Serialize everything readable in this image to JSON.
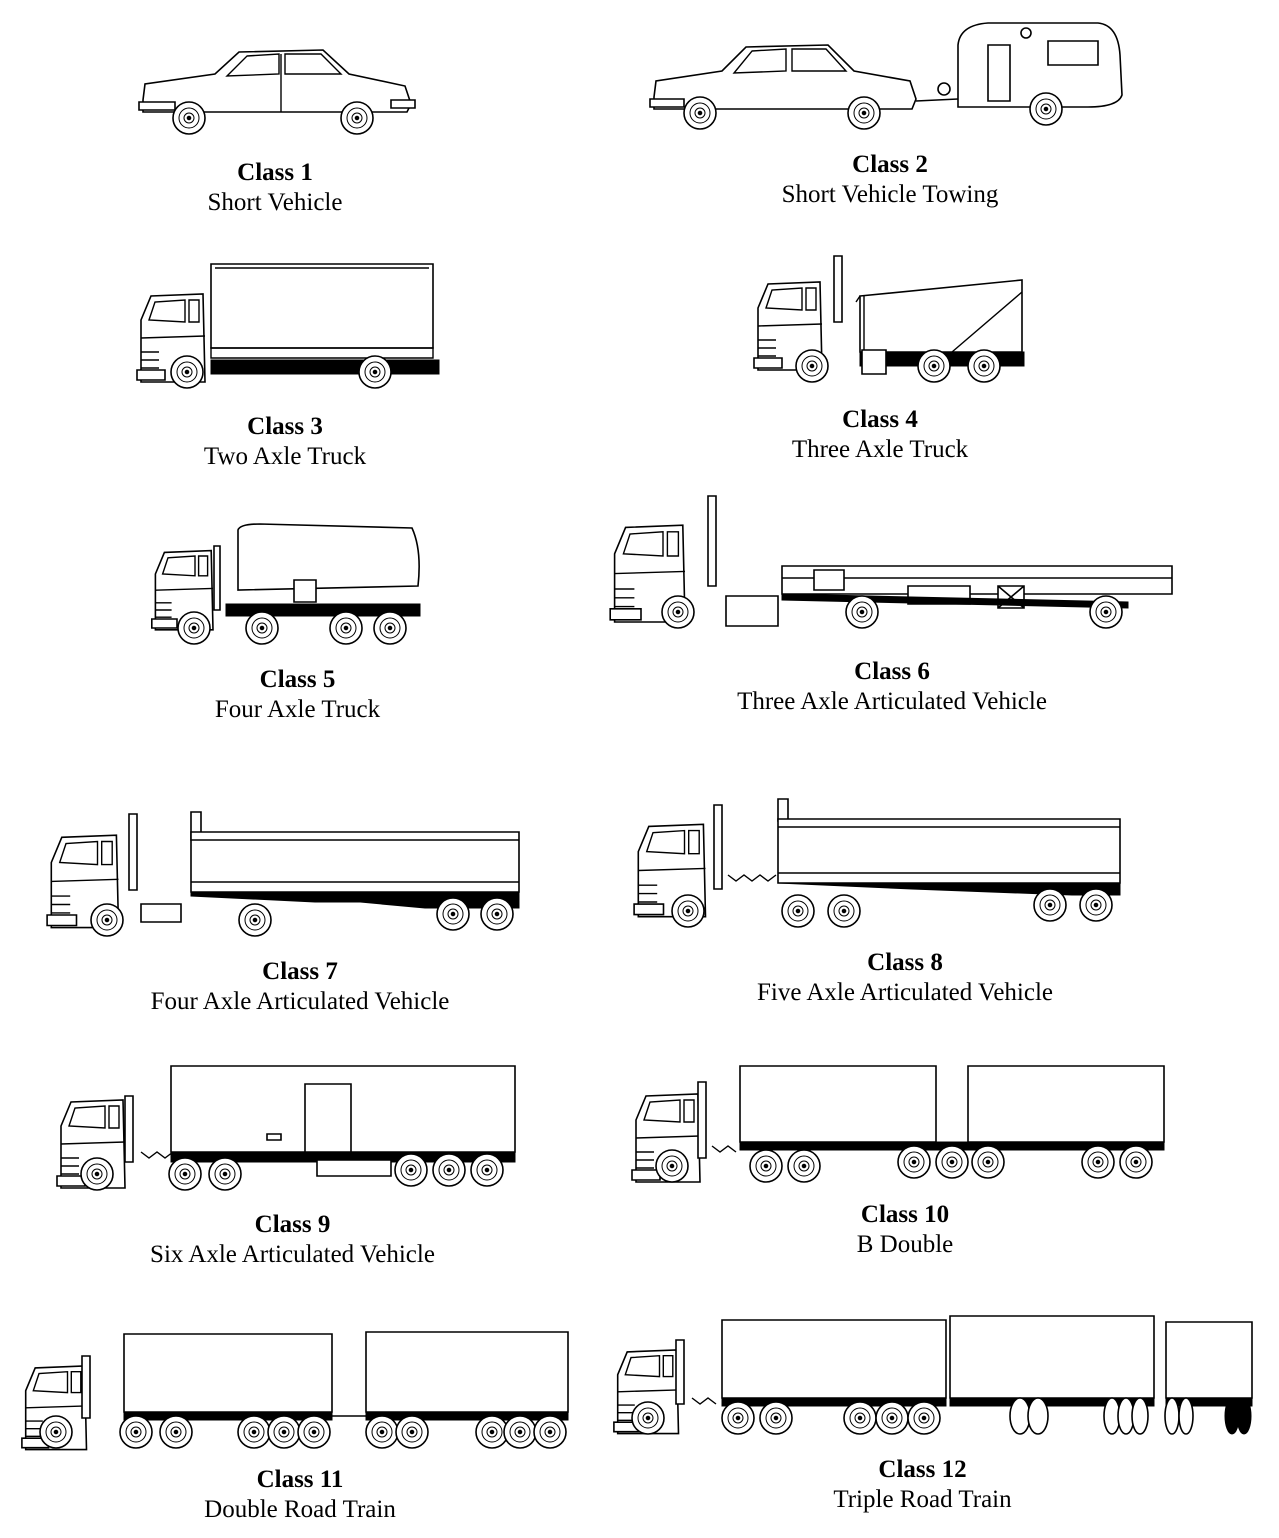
{
  "classes": [
    {
      "class_label": "Class 1",
      "name": "Short Vehicle",
      "icon": "car-icon"
    },
    {
      "class_label": "Class 2",
      "name": "Short Vehicle Towing",
      "icon": "car-towing-caravan-icon"
    },
    {
      "class_label": "Class 3",
      "name": "Two Axle Truck",
      "icon": "two-axle-truck-icon"
    },
    {
      "class_label": "Class 4",
      "name": "Three Axle Truck",
      "icon": "three-axle-truck-icon"
    },
    {
      "class_label": "Class 5",
      "name": "Four Axle Truck",
      "icon": "four-axle-truck-icon"
    },
    {
      "class_label": "Class 6",
      "name": "Three Axle Articulated Vehicle",
      "icon": "three-axle-articulated-icon"
    },
    {
      "class_label": "Class 7",
      "name": "Four Axle Articulated Vehicle",
      "icon": "four-axle-articulated-icon"
    },
    {
      "class_label": "Class 8",
      "name": "Five Axle Articulated Vehicle",
      "icon": "five-axle-articulated-icon"
    },
    {
      "class_label": "Class 9",
      "name": "Six Axle Articulated Vehicle",
      "icon": "six-axle-articulated-icon"
    },
    {
      "class_label": "Class 10",
      "name": "B Double",
      "icon": "b-double-icon"
    },
    {
      "class_label": "Class 11",
      "name": "Double Road Train",
      "icon": "double-road-train-icon"
    },
    {
      "class_label": "Class 12",
      "name": "Triple Road Train",
      "icon": "triple-road-train-icon"
    }
  ]
}
